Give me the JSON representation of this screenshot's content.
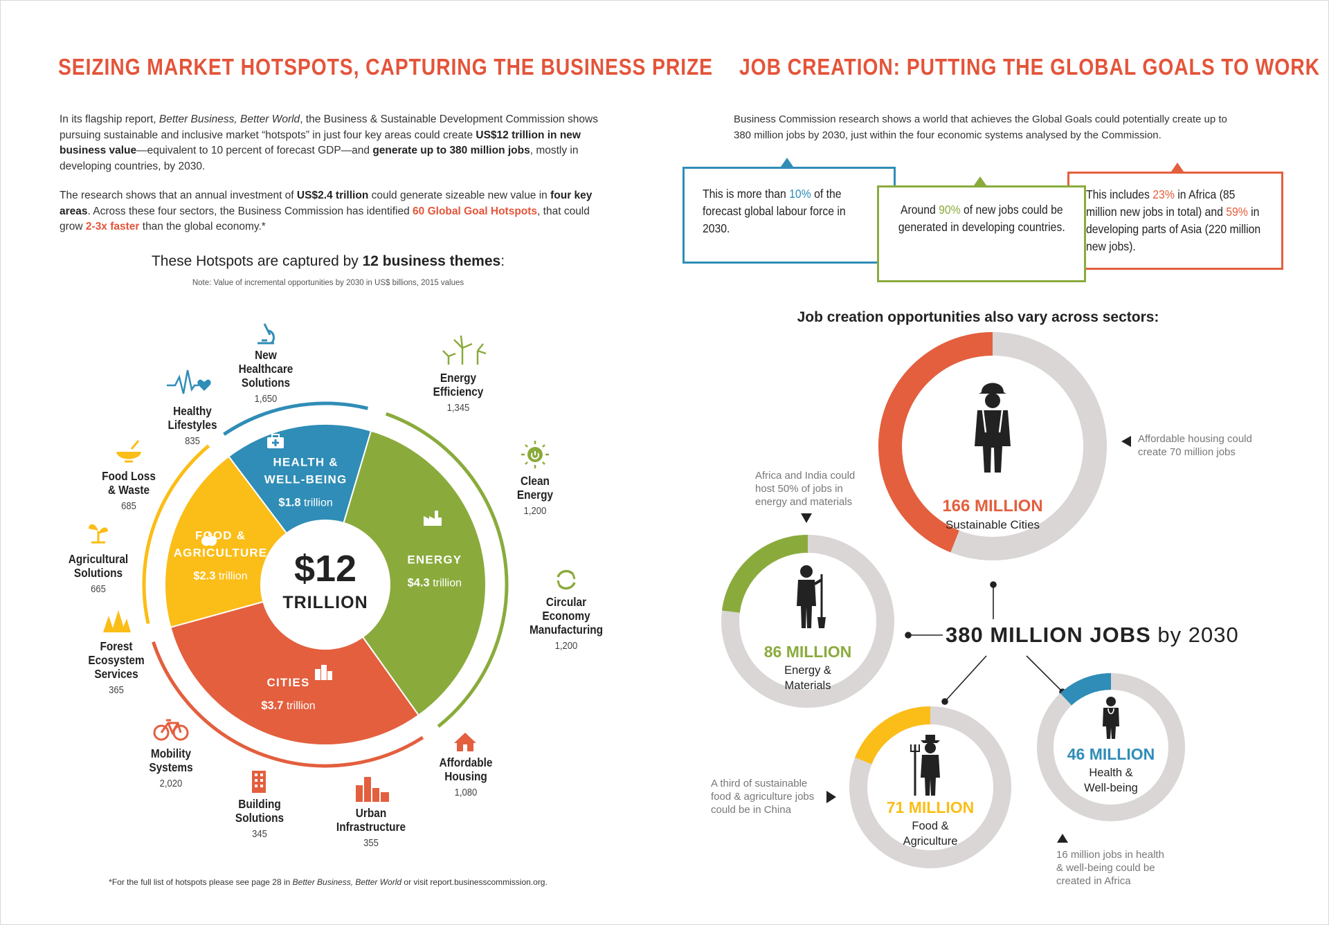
{
  "left": {
    "title": "SEIZING MARKET HOTSPOTS, CAPTURING THE BUSINESS PRIZE",
    "para1": {
      "a": "In its flagship report, ",
      "b": "Better Business, Better World",
      "c": ", the Business & Sustainable Development Commission shows pursuing sustainable and inclusive market “hotspots” in just four key areas could create ",
      "d": "US$12 trillion in new business value",
      "e": "—equivalent to 10 percent of forecast GDP—and ",
      "f": "generate up to 380 million jobs",
      "g": ", mostly in developing countries, by 2030."
    },
    "para2": {
      "a": "The research shows that an annual investment of ",
      "b": "US$2.4 trillion",
      "c": " could generate sizeable new value in ",
      "d": "four key areas",
      "e": ". Across these four sectors, the Business Commission has identified ",
      "f": "60 Global Goal Hotspots",
      "g": ", that could grow ",
      "h": "2-3x faster",
      "i": " than the global economy.*"
    },
    "themes_heading": {
      "a": "These Hotspots are captured by ",
      "b": "12 business themes",
      "c": ":"
    },
    "note": "Note: Value of incremental opportunities by 2030 in US$ billions, 2015 values",
    "footnote": {
      "a": "*For the full list of hotspots please see page 28 in ",
      "b": "Better Business, Better World",
      "c": " or visit report.businesscommission.org."
    },
    "center": {
      "value": "$12",
      "unit": "TRILLION"
    },
    "segments": [
      {
        "line1": "HEALTH &",
        "line2": "WELL-BEING",
        "value": "$1.8",
        "unit": " trillion",
        "color": "#2f8db7",
        "share": 1.8
      },
      {
        "line1": "ENERGY",
        "line2": "",
        "value": "$4.3",
        "unit": " trillion",
        "color": "#8aab3c",
        "share": 4.3
      },
      {
        "line1": "CITIES",
        "line2": "",
        "value": "$3.7",
        "unit": " trillion",
        "color": "#e35f3e",
        "share": 3.7
      },
      {
        "line1": "FOOD &",
        "line2": "AGRICULTURE",
        "value": "$2.3",
        "unit": " trillion",
        "color": "#fbbd17",
        "share": 2.3
      }
    ],
    "themes": [
      {
        "name1": "New",
        "name2": "Healthcare",
        "name3": "Solutions",
        "value": "1,650",
        "icon": "microscope-icon"
      },
      {
        "name1": "Energy",
        "name2": "Efficiency",
        "name3": "",
        "value": "1,345",
        "icon": "wind-turbine-icon"
      },
      {
        "name1": "Clean",
        "name2": "Energy",
        "name3": "",
        "value": "1,200",
        "icon": "sun-power-icon"
      },
      {
        "name1": "Circular",
        "name2": "Economy",
        "name3": "Manufacturing",
        "value": "1,200",
        "icon": "recycle-icon"
      },
      {
        "name1": "Affordable",
        "name2": "Housing",
        "name3": "",
        "value": "1,080",
        "icon": "house-icon"
      },
      {
        "name1": "Urban",
        "name2": "Infrastructure",
        "name3": "",
        "value": "355",
        "icon": "city-buildings-icon"
      },
      {
        "name1": "Building",
        "name2": "Solutions",
        "name3": "",
        "value": "345",
        "icon": "building-icon"
      },
      {
        "name1": "Mobility",
        "name2": "Systems",
        "name3": "",
        "value": "2,020",
        "icon": "bicycle-icon"
      },
      {
        "name1": "Forest",
        "name2": "Ecosystem",
        "name3": "Services",
        "value": "365",
        "icon": "trees-icon"
      },
      {
        "name1": "Agricultural",
        "name2": "Solutions",
        "name3": "",
        "value": "665",
        "icon": "sprout-icon"
      },
      {
        "name1": "Food Loss",
        "name2": "& Waste",
        "name3": "",
        "value": "685",
        "icon": "bowl-icon"
      },
      {
        "name1": "Healthy",
        "name2": "Lifestyles",
        "name3": "",
        "value": "835",
        "icon": "heartbeat-icon"
      }
    ]
  },
  "right": {
    "title": "JOB CREATION: PUTTING THE GLOBAL GOALS TO WORK",
    "intro": "Business Commission research shows a world that achieves the Global Goals could potentially create up to 380 million jobs by 2030, just within the four economic systems analysed by the Commission.",
    "box1": {
      "a": "This is more than ",
      "b": "10%",
      "c": " of the forecast global labour force in 2030."
    },
    "box2": {
      "a": "Around ",
      "b": "90%",
      "c": " of new jobs could be generated in developing countries."
    },
    "box3": {
      "a": "This includes ",
      "b": "23%",
      "c": " in Africa (85 million new jobs in total) and ",
      "d": "59%",
      "e": " in developing parts of Asia (220 million new jobs)."
    },
    "sectors_heading": "Job creation opportunities also vary across sectors:",
    "total": {
      "bold": "380 MILLION JOBS",
      "rest": " by 2030"
    },
    "rings": [
      {
        "value": "166 MILLION",
        "label1": "Sustainable Cities",
        "label2": "",
        "color": "#e35f3e",
        "fraction": 0.44
      },
      {
        "value": "86 MILLION",
        "label1": "Energy &",
        "label2": "Materials",
        "color": "#8aab3c",
        "fraction": 0.23
      },
      {
        "value": "71 MILLION",
        "label1": "Food &",
        "label2": "Agriculture",
        "color": "#fbbd17",
        "fraction": 0.19
      },
      {
        "value": "46 MILLION",
        "label1": "Health &",
        "label2": "Well-being",
        "color": "#2f8db7",
        "fraction": 0.12
      }
    ],
    "notes": {
      "housing": "Affordable housing could create 70 million jobs",
      "africa_india": "Africa and India could host 50% of jobs in energy and materials",
      "china": "A third of sustainable food & agriculture jobs could be in China",
      "health_africa": "16 million jobs in health & well-being could be created in Africa"
    }
  },
  "colors": {
    "orange": "#e4543a",
    "green": "#8aab3c",
    "blue": "#2f8db7",
    "yellow": "#fbbd17",
    "ring_gray": "#d9d6d5"
  }
}
